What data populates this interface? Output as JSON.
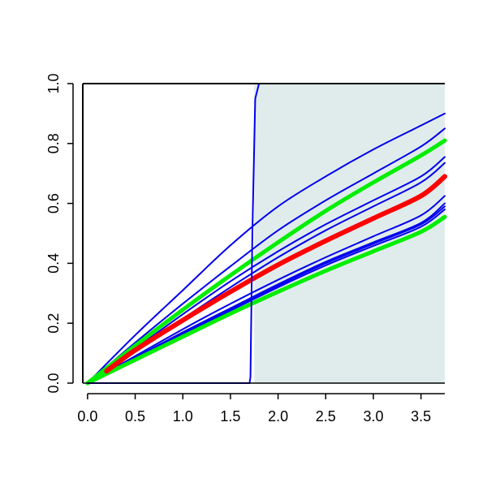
{
  "chart_data": {
    "type": "line",
    "title": "",
    "xlabel": "",
    "ylabel": "",
    "xlim": [
      -0.05,
      3.75
    ],
    "ylim": [
      0.0,
      1.0
    ],
    "grid": false,
    "legend": "none",
    "x_ticks": [
      "0.0",
      "0.5",
      "1.0",
      "1.5",
      "2.0",
      "2.5",
      "3.0",
      "3.5"
    ],
    "y_ticks": [
      "0.0",
      "0.2",
      "0.4",
      "0.6",
      "0.8",
      "1.0"
    ],
    "shaded_region": {
      "x_from": 1.75,
      "x_to": 3.75,
      "color": "#e0ecec"
    },
    "step_curve": {
      "color": "#0000ee",
      "points": [
        [
          0.0,
          0.0
        ],
        [
          1.7,
          0.0
        ],
        [
          1.71,
          0.02
        ],
        [
          1.73,
          0.5
        ],
        [
          1.76,
          0.95
        ],
        [
          1.8,
          1.0
        ],
        [
          3.75,
          1.0
        ]
      ]
    },
    "series": [
      {
        "color": "#0000ee",
        "width": 2,
        "x": [
          0,
          0.5,
          1.0,
          1.5,
          2.0,
          2.5,
          3.0,
          3.5,
          3.75
        ],
        "values": [
          0,
          0.16,
          0.31,
          0.46,
          0.59,
          0.69,
          0.78,
          0.86,
          0.9
        ]
      },
      {
        "color": "#0000ee",
        "width": 2,
        "x": [
          0,
          0.5,
          1.0,
          1.5,
          2.0,
          2.5,
          3.0,
          3.5,
          3.75
        ],
        "values": [
          0,
          0.135,
          0.265,
          0.39,
          0.51,
          0.61,
          0.7,
          0.79,
          0.85
        ]
      },
      {
        "color": "#0000ee",
        "width": 2,
        "x": [
          0,
          0.5,
          1.0,
          1.5,
          2.0,
          2.5,
          3.0,
          3.5,
          3.75
        ],
        "values": [
          0,
          0.115,
          0.23,
          0.34,
          0.44,
          0.53,
          0.61,
          0.69,
          0.755
        ]
      },
      {
        "color": "#0000ee",
        "width": 2,
        "x": [
          0,
          0.5,
          1.0,
          1.5,
          2.0,
          2.5,
          3.0,
          3.5,
          3.75
        ],
        "values": [
          0,
          0.11,
          0.215,
          0.32,
          0.42,
          0.51,
          0.59,
          0.67,
          0.735
        ]
      },
      {
        "color": "#0000ee",
        "width": 2,
        "x": [
          0,
          0.5,
          1.0,
          1.5,
          2.0,
          2.5,
          3.0,
          3.5,
          3.75
        ],
        "values": [
          0,
          0.09,
          0.18,
          0.265,
          0.345,
          0.42,
          0.49,
          0.56,
          0.625
        ]
      },
      {
        "color": "#0000ee",
        "width": 2,
        "x": [
          0,
          0.5,
          1.0,
          1.5,
          2.0,
          2.5,
          3.0,
          3.5,
          3.75
        ],
        "values": [
          0,
          0.085,
          0.17,
          0.25,
          0.33,
          0.405,
          0.47,
          0.535,
          0.6
        ]
      },
      {
        "color": "#0000ee",
        "width": 2,
        "x": [
          0,
          0.5,
          1.0,
          1.5,
          2.0,
          2.5,
          3.0,
          3.5,
          3.75
        ],
        "values": [
          0,
          0.083,
          0.165,
          0.245,
          0.325,
          0.4,
          0.465,
          0.53,
          0.59
        ]
      },
      {
        "color": "#0000ee",
        "width": 2,
        "x": [
          0,
          0.5,
          1.0,
          1.5,
          2.0,
          2.5,
          3.0,
          3.5,
          3.75
        ],
        "values": [
          0,
          0.081,
          0.162,
          0.242,
          0.32,
          0.393,
          0.458,
          0.522,
          0.58
        ]
      },
      {
        "color": "#00ee00",
        "width": 5,
        "x": [
          0,
          0.5,
          1.0,
          1.5,
          2.0,
          2.5,
          3.0,
          3.5,
          3.75
        ],
        "values": [
          0,
          0.125,
          0.245,
          0.36,
          0.47,
          0.575,
          0.67,
          0.76,
          0.81
        ]
      },
      {
        "color": "#00ee00",
        "width": 5,
        "x": [
          0,
          0.5,
          1.0,
          1.5,
          2.0,
          2.5,
          3.0,
          3.5,
          3.75
        ],
        "values": [
          0,
          0.078,
          0.155,
          0.232,
          0.305,
          0.375,
          0.44,
          0.505,
          0.555
        ]
      },
      {
        "color": "#ff0000",
        "width": 6,
        "x": [
          0.2,
          0.5,
          1.0,
          1.5,
          2.0,
          2.5,
          3.0,
          3.5,
          3.75
        ],
        "values": [
          0.04,
          0.11,
          0.21,
          0.305,
          0.395,
          0.475,
          0.55,
          0.625,
          0.69
        ]
      }
    ]
  }
}
